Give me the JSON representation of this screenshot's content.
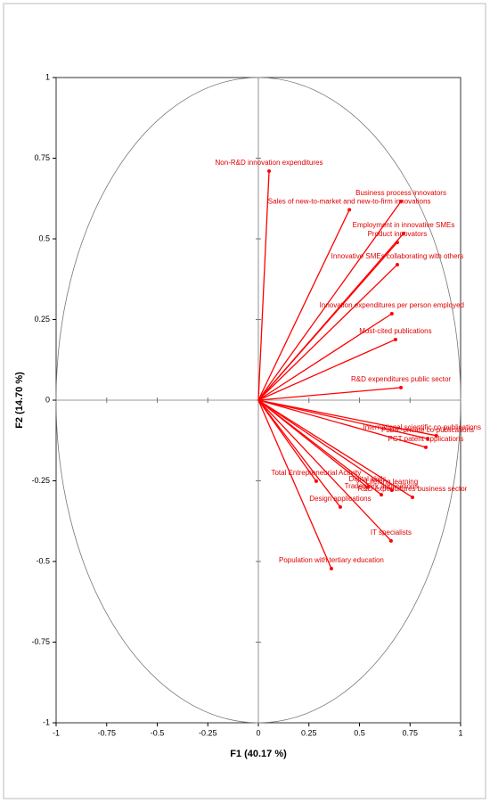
{
  "chart_data": {
    "type": "biplot",
    "color": "#ff0000",
    "x_label": "F1 (40.17 %)",
    "y_label": "F2 (14.70 %)",
    "xlim": [
      -1,
      1
    ],
    "ylim": [
      -1,
      1
    ],
    "xticks": [
      -1,
      -0.75,
      -0.5,
      -0.25,
      0,
      0.25,
      0.5,
      0.75,
      1
    ],
    "yticks": [
      -1,
      -0.75,
      -0.5,
      -0.25,
      0,
      0.25,
      0.5,
      0.75,
      1
    ],
    "points": [
      {
        "label": "Non-R&D innovation expenditures",
        "x": 0.053,
        "y": 0.71
      },
      {
        "label": "Sales of new-to-market and new-to-firm innovations",
        "x": 0.45,
        "y": 0.59
      },
      {
        "label": "Business process innovators",
        "x": 0.705,
        "y": 0.616
      },
      {
        "label": "Employment in innovative SMEs",
        "x": 0.718,
        "y": 0.517
      },
      {
        "label": "Product innovators",
        "x": 0.687,
        "y": 0.489
      },
      {
        "label": "Innovative SMEs collaborating with others",
        "x": 0.687,
        "y": 0.42
      },
      {
        "label": "Innovation expenditures per person employed",
        "x": 0.66,
        "y": 0.268
      },
      {
        "label": "Most-cited publications",
        "x": 0.678,
        "y": 0.188
      },
      {
        "label": "R&D expenditures public sector",
        "x": 0.705,
        "y": 0.039
      },
      {
        "label": "International scientific co-publications",
        "x": 0.88,
        "y": -0.11
      },
      {
        "label": "Public-private co-publications",
        "x": 0.837,
        "y": -0.119
      },
      {
        "label": "PCT patent applications",
        "x": 0.828,
        "y": -0.146
      },
      {
        "label": "R&D expenditures business sector",
        "x": 0.762,
        "y": -0.301
      },
      {
        "label": "Lifelong learning",
        "x": 0.66,
        "y": -0.279
      },
      {
        "label": "Trademark applications",
        "x": 0.608,
        "y": -0.293
      },
      {
        "label": "Digital skills",
        "x": 0.54,
        "y": -0.27
      },
      {
        "label": "Total Entrepreneurial Activity",
        "x": 0.286,
        "y": -0.251
      },
      {
        "label": "Design applications",
        "x": 0.405,
        "y": -0.331
      },
      {
        "label": "IT specialists",
        "x": 0.656,
        "y": -0.436
      },
      {
        "label": "Population with tertiary education",
        "x": 0.361,
        "y": -0.522
      }
    ]
  }
}
